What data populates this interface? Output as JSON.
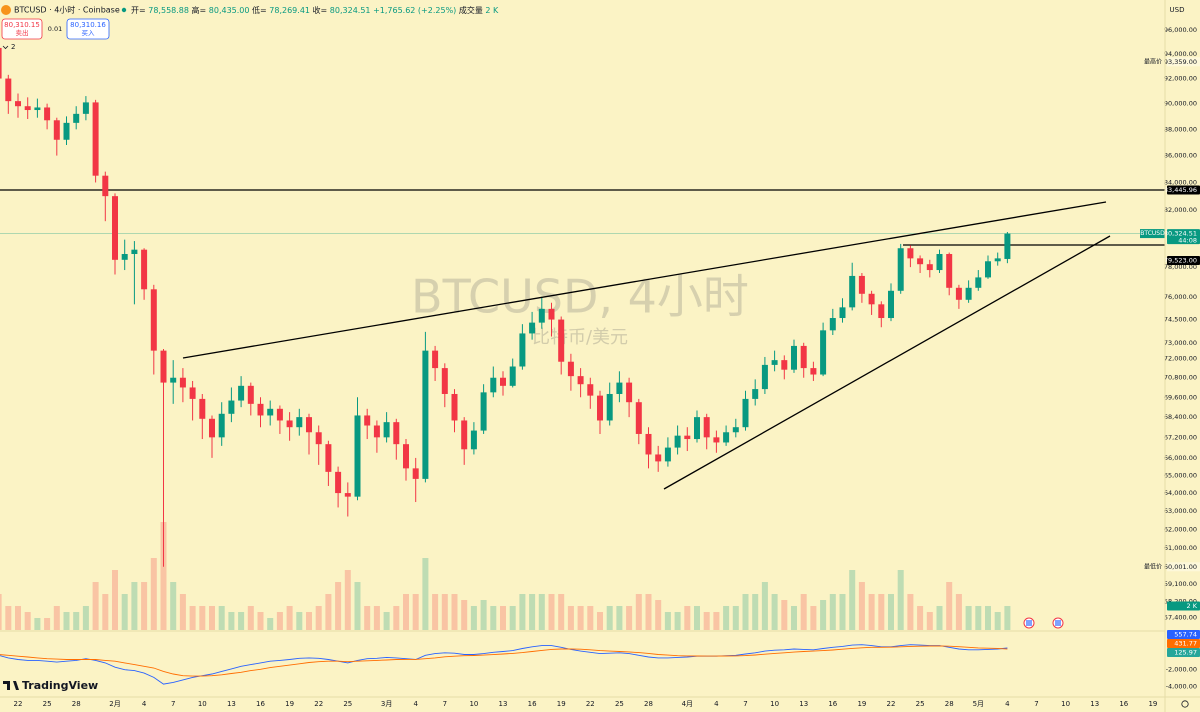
{
  "header": {
    "symbol": "BTCUSD · 4小时 · Coinbase",
    "ohlc": [
      {
        "label": "开=",
        "value": "78,558.88"
      },
      {
        "label": "高=",
        "value": "80,435.00"
      },
      {
        "label": "低=",
        "value": "78,269.41"
      },
      {
        "label": "收=",
        "value": "80,324.51"
      }
    ],
    "change": "+1,765.62 (+2.25%)",
    "sell": {
      "price": "80,310.15",
      "label": "卖出"
    },
    "spread": "0.01",
    "buy": {
      "price": "80,310.16",
      "label": "买入"
    },
    "indicators": "2",
    "currency": "USD",
    "logo": "TradingView"
  },
  "chart_data": {
    "type": "candlestick",
    "watermark": {
      "title": "BTCUSD, 4小时",
      "subtitle": "比特币/美元"
    },
    "log_scale": true,
    "grid": false,
    "up_color": "#089981",
    "down_color": "#f23645",
    "ylim": [
      56770,
      98550
    ],
    "yticks": [
      {
        "value": 96000,
        "label": "96,000.00"
      },
      {
        "value": 94000,
        "label": "94,000.00"
      },
      {
        "value": 92000,
        "label": "92,000.00"
      },
      {
        "value": 90000,
        "label": "90,000.00"
      },
      {
        "value": 88000,
        "label": "88,000.00"
      },
      {
        "value": 86000,
        "label": "86,000.00"
      },
      {
        "value": 84000,
        "label": "84,000.00"
      },
      {
        "value": 82000,
        "label": "82,000.00"
      },
      {
        "value": 78000,
        "label": "78,000.00"
      },
      {
        "value": 76000,
        "label": "76,000.00"
      },
      {
        "value": 74500,
        "label": "74,500.00"
      },
      {
        "value": 73000,
        "label": "73,000.00"
      },
      {
        "value": 72000,
        "label": "72,000.00"
      },
      {
        "value": 70800,
        "label": "70,800.00"
      },
      {
        "value": 69600,
        "label": "69,600.00"
      },
      {
        "value": 68400,
        "label": "68,400.00"
      },
      {
        "value": 67200,
        "label": "67,200.00"
      },
      {
        "value": 66000,
        "label": "66,000.00"
      },
      {
        "value": 65000,
        "label": "65,000.00"
      },
      {
        "value": 64000,
        "label": "64,000.00"
      },
      {
        "value": 63000,
        "label": "63,000.00"
      },
      {
        "value": 62000,
        "label": "62,000.00"
      },
      {
        "value": 61000,
        "label": "61,000.00"
      },
      {
        "value": 59100,
        "label": "59,100.00"
      },
      {
        "value": 58200,
        "label": "58,200.00"
      },
      {
        "value": 57400,
        "label": "57,400.00"
      }
    ],
    "categories": [
      null,
      null,
      "22",
      null,
      null,
      "25",
      null,
      null,
      "28",
      null,
      null,
      null,
      "2月",
      null,
      null,
      "4",
      null,
      null,
      "7",
      null,
      null,
      "10",
      null,
      null,
      "13",
      null,
      null,
      "16",
      null,
      null,
      "19",
      null,
      null,
      "22",
      null,
      null,
      "25",
      null,
      null,
      null,
      "3月",
      null,
      null,
      "4",
      null,
      null,
      "7",
      null,
      null,
      "10",
      null,
      null,
      "13",
      null,
      null,
      "16",
      null,
      null,
      "19",
      null,
      null,
      "22",
      null,
      null,
      "25",
      null,
      null,
      "28",
      null,
      null,
      null,
      "4月",
      null,
      null,
      "4",
      null,
      null,
      "7",
      null,
      null,
      "10",
      null,
      null,
      "13",
      null,
      null,
      "16",
      null,
      null,
      "19",
      null,
      null,
      "22",
      null,
      null,
      "25",
      null,
      null,
      "28",
      null,
      null,
      "5月",
      null,
      null,
      "4",
      null,
      null,
      "7",
      null,
      null,
      "10",
      null,
      null,
      "13",
      null,
      null,
      "16",
      null,
      null,
      "19",
      null
    ],
    "series": [
      {
        "name": "BTCUSD",
        "open": [
          94500,
          92000,
          90200,
          89800,
          89500,
          89700,
          88700,
          87200,
          88500,
          89200,
          90100,
          84500,
          83000,
          78500,
          78900,
          79200,
          76500,
          72500,
          70500,
          70800,
          70200,
          69500,
          68300,
          67200,
          68600,
          69400,
          70300,
          69200,
          68500,
          68900,
          68200,
          67800,
          68400,
          67500,
          66800,
          65200,
          64000,
          63800,
          68500,
          67900,
          67200,
          68100,
          66800,
          65400,
          64800,
          72500,
          71400,
          69800,
          68200,
          66500,
          67600,
          69900,
          70800,
          70300,
          71500,
          73600,
          74300,
          75200,
          74500,
          71800,
          70900,
          70400,
          69700,
          68200,
          69800,
          70500,
          69300,
          67400,
          66200,
          65800,
          66600,
          67300,
          67100,
          68400,
          67200,
          66900,
          67500,
          67800,
          69500,
          70100,
          71600,
          71900,
          71300,
          72800,
          71400,
          71000,
          73800,
          74600,
          75300,
          77400,
          76200,
          75500,
          74600,
          76400,
          79300,
          78600,
          78200,
          77800,
          78900,
          76600,
          75800,
          76600,
          77300,
          78400,
          78558.88,
          null,
          null,
          null,
          null,
          null,
          null,
          null,
          null,
          null,
          null,
          null,
          null,
          null,
          null,
          null,
          null
        ],
        "high": [
          95200,
          92300,
          90800,
          90500,
          90400,
          90000,
          88900,
          89000,
          89800,
          90600,
          90300,
          84800,
          83200,
          79900,
          79800,
          79300,
          76800,
          72600,
          71900,
          71400,
          70600,
          69800,
          68500,
          69300,
          70200,
          70900,
          70500,
          69600,
          69400,
          69100,
          68700,
          68900,
          68600,
          67900,
          67000,
          65500,
          64600,
          69600,
          68900,
          68200,
          68700,
          68300,
          67100,
          66000,
          73700,
          72800,
          71700,
          70100,
          68400,
          68100,
          70400,
          71500,
          71200,
          72000,
          74200,
          75000,
          76000,
          75600,
          74700,
          72300,
          71400,
          70800,
          70000,
          70500,
          71200,
          70800,
          69500,
          67800,
          66700,
          67200,
          67900,
          67800,
          68800,
          68600,
          67600,
          67900,
          68300,
          70000,
          70700,
          72100,
          72500,
          72200,
          73200,
          73000,
          71800,
          74300,
          75200,
          75900,
          78300,
          77600,
          76400,
          75700,
          76900,
          79600,
          79500,
          78800,
          78500,
          79200,
          79000,
          76800,
          77100,
          77800,
          78800,
          79000,
          80435,
          null,
          null,
          null,
          null,
          null,
          null,
          null,
          null,
          null,
          null,
          null,
          null,
          null,
          null,
          null,
          null
        ],
        "low": [
          91500,
          89200,
          88900,
          88800,
          88900,
          88000,
          86000,
          86800,
          88000,
          88700,
          84000,
          81200,
          77500,
          77800,
          75500,
          75800,
          71000,
          60001,
          69200,
          69300,
          68200,
          67100,
          66000,
          66700,
          68100,
          69000,
          68500,
          67800,
          67900,
          67400,
          67000,
          67300,
          66200,
          65600,
          64400,
          63200,
          62700,
          63600,
          67100,
          66300,
          66900,
          65900,
          64700,
          63500,
          64600,
          70600,
          69000,
          67500,
          65600,
          66200,
          67400,
          69600,
          69700,
          70200,
          71300,
          73200,
          73900,
          73400,
          71000,
          70000,
          69600,
          68900,
          67400,
          67900,
          69300,
          68400,
          66800,
          65400,
          65200,
          65500,
          66200,
          66400,
          66900,
          66500,
          66300,
          66700,
          67200,
          67600,
          69100,
          69800,
          71200,
          70700,
          71100,
          70800,
          70600,
          70900,
          73500,
          74300,
          75100,
          75600,
          74800,
          74000,
          74400,
          76200,
          78000,
          77600,
          77300,
          77600,
          76100,
          75200,
          75600,
          76400,
          77200,
          78100,
          78269.41,
          null,
          null,
          null,
          null,
          null,
          null,
          null,
          null,
          null,
          null,
          null,
          null,
          null,
          null,
          null,
          null
        ],
        "close": [
          92000,
          90200,
          89800,
          89500,
          89700,
          88700,
          87200,
          88500,
          89200,
          90100,
          84500,
          83000,
          78500,
          78900,
          79200,
          76500,
          72500,
          70500,
          70800,
          70200,
          69500,
          68300,
          67200,
          68600,
          69400,
          70300,
          69200,
          68500,
          68900,
          68200,
          67800,
          68400,
          67500,
          66800,
          65200,
          64000,
          63800,
          68500,
          67900,
          67200,
          68100,
          66800,
          65400,
          64800,
          72500,
          71400,
          69800,
          68200,
          66500,
          67600,
          69900,
          70800,
          70300,
          71500,
          73600,
          74300,
          75200,
          74500,
          71800,
          70900,
          70400,
          69700,
          68200,
          69800,
          70500,
          69300,
          67400,
          66200,
          65800,
          66600,
          67300,
          67100,
          68400,
          67200,
          66900,
          67500,
          67800,
          69500,
          70100,
          71600,
          71900,
          71300,
          72800,
          71400,
          71000,
          73800,
          74600,
          75300,
          77400,
          76200,
          75500,
          74600,
          76400,
          79300,
          78600,
          78200,
          77800,
          78900,
          76600,
          75800,
          76600,
          77300,
          78400,
          78600,
          80324.51,
          null,
          null,
          null,
          null,
          null,
          null,
          null,
          null,
          null,
          null,
          null,
          null,
          null,
          null,
          null,
          null
        ]
      }
    ],
    "last_price": {
      "name": "BTCUSD",
      "value": 80324.51,
      "label": "80,324.51",
      "countdown": "44:08"
    },
    "hlines": [
      {
        "value": 83445.96,
        "label": "83,445.96"
      },
      {
        "value": 79523,
        "label": "79,523.00"
      }
    ],
    "extremes": [
      {
        "name": "最高价",
        "value": 93359,
        "label": "93,359.00"
      },
      {
        "name": "最低价",
        "value": 60001,
        "label": "60,001.00"
      }
    ],
    "volume": {
      "name": "成交量",
      "values": [
        3,
        2,
        2,
        1.5,
        1,
        1,
        2,
        1.5,
        1.5,
        2,
        4,
        3,
        5,
        3,
        4,
        4,
        6,
        9,
        4,
        3,
        2,
        2,
        2,
        2,
        1.5,
        1.5,
        2,
        1.5,
        1,
        1.5,
        2,
        1.5,
        1.5,
        2,
        3,
        4,
        5,
        4,
        2,
        2,
        1.5,
        2,
        3,
        3,
        6,
        3,
        3,
        3,
        2.5,
        2,
        2.5,
        2,
        2,
        2,
        3,
        3,
        3,
        3,
        3,
        2,
        2,
        2,
        1.5,
        2,
        2,
        2,
        3,
        3,
        2.5,
        1.5,
        1.5,
        2,
        2,
        1.5,
        1.5,
        2,
        2,
        3,
        3,
        4,
        3,
        2.5,
        2,
        3,
        2,
        2.5,
        3,
        3,
        5,
        4,
        3,
        3,
        3,
        5,
        3,
        2,
        1.5,
        2,
        4,
        3,
        2,
        2,
        2,
        1.5,
        2,
        null,
        null,
        null,
        null,
        null,
        null,
        null,
        null,
        null,
        null,
        null,
        null,
        null,
        null,
        null,
        null
      ],
      "last": {
        "value": 2,
        "label": "2 K"
      }
    },
    "macd": {
      "ylim": [
        -5100,
        2450
      ],
      "yticks": [
        {
          "value": -2000,
          "label": "-2,000.00"
        },
        {
          "value": -4000,
          "label": "-4,000.00"
        }
      ],
      "series": [
        {
          "color": "#2962ff",
          "last_label": "557.74",
          "values": [
            -300,
            -600,
            -800,
            -900,
            -900,
            -1000,
            -1100,
            -1000,
            -900,
            -700,
            -900,
            -1200,
            -1700,
            -2000,
            -2100,
            -2400,
            -2900,
            -3700,
            -3500,
            -3200,
            -2900,
            -2700,
            -2500,
            -2200,
            -1900,
            -1600,
            -1400,
            -1200,
            -1000,
            -900,
            -800,
            -650,
            -600,
            -650,
            -800,
            -1000,
            -1200,
            -900,
            -700,
            -650,
            -550,
            -600,
            -700,
            -800,
            -300,
            -100,
            0,
            -50,
            -200,
            -200,
            -100,
            50,
            150,
            250,
            500,
            700,
            850,
            850,
            650,
            400,
            200,
            50,
            -100,
            -50,
            0,
            -100,
            -300,
            -500,
            -600,
            -600,
            -550,
            -500,
            -400,
            -400,
            -400,
            -350,
            -300,
            -150,
            0,
            200,
            300,
            350,
            450,
            400,
            350,
            500,
            650,
            750,
            900,
            950,
            850,
            700,
            700,
            850,
            950,
            900,
            850,
            850,
            650,
            450,
            350,
            350,
            400,
            450,
            557.74,
            null,
            null,
            null,
            null,
            null,
            null,
            null,
            null,
            null,
            null,
            null,
            null,
            null,
            null,
            null,
            null
          ]
        },
        {
          "color": "#ff6d00",
          "last_label": "431.77",
          "values": [
            -200,
            -300,
            -400,
            -500,
            -600,
            -700,
            -750,
            -800,
            -800,
            -800,
            -800,
            -900,
            -1000,
            -1200,
            -1400,
            -1600,
            -1800,
            -2200,
            -2500,
            -2700,
            -2750,
            -2750,
            -2700,
            -2600,
            -2450,
            -2300,
            -2100,
            -1950,
            -1750,
            -1600,
            -1450,
            -1300,
            -1150,
            -1050,
            -1000,
            -1000,
            -1050,
            -1000,
            -950,
            -900,
            -850,
            -800,
            -780,
            -780,
            -700,
            -600,
            -480,
            -400,
            -350,
            -320,
            -280,
            -220,
            -150,
            -80,
            20,
            150,
            280,
            400,
            450,
            450,
            420,
            350,
            260,
            200,
            150,
            100,
            20,
            -80,
            -200,
            -280,
            -340,
            -370,
            -380,
            -390,
            -390,
            -385,
            -370,
            -330,
            -260,
            -170,
            -80,
            0,
            80,
            150,
            200,
            250,
            330,
            420,
            510,
            590,
            640,
            650,
            660,
            700,
            750,
            780,
            800,
            810,
            780,
            710,
            640,
            580,
            540,
            520,
            431.77,
            null,
            null,
            null,
            null,
            null,
            null,
            null,
            null,
            null,
            null,
            null,
            null,
            null,
            null,
            null,
            null
          ]
        }
      ],
      "histogram_last": {
        "value": 125.97,
        "label": "125.97"
      }
    }
  }
}
